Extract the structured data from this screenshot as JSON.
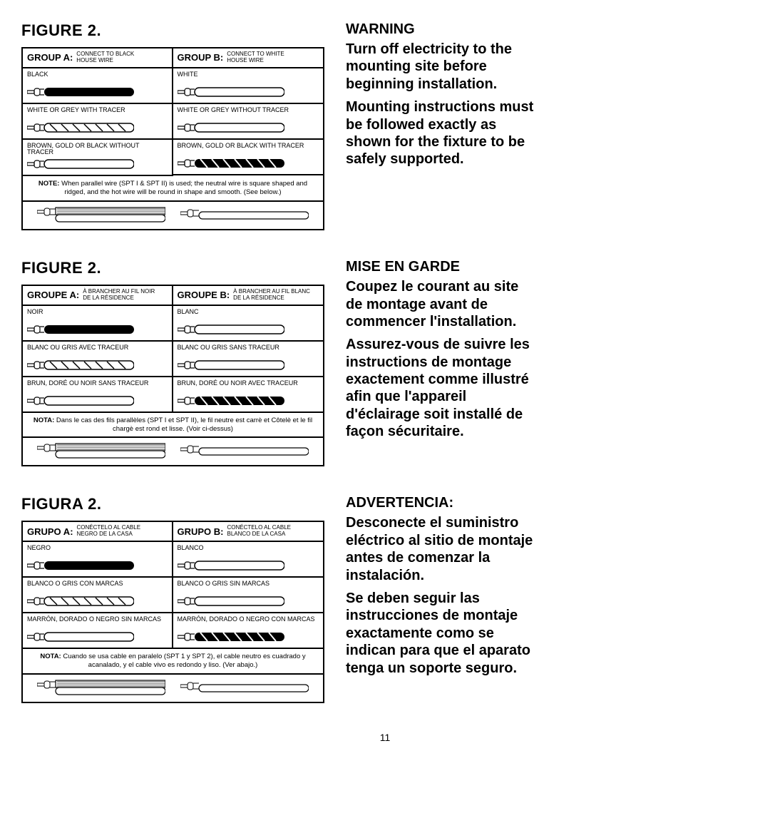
{
  "pageNumber": "11",
  "sections": [
    {
      "figTitle": "FIGURE 2.",
      "groupA": {
        "label": "GROUP A:",
        "sub1": "CONNECT TO BLACK",
        "sub2": "HOUSE WIRE"
      },
      "groupB": {
        "label": "GROUP B:",
        "sub1": "CONNECT TO WHITE",
        "sub2": "HOUSE WIRE"
      },
      "colA": [
        "BLACK",
        "WHITE OR GREY WITH TRACER",
        "BROWN, GOLD OR BLACK WITHOUT TRACER"
      ],
      "colB": [
        "WHITE",
        "WHITE OR GREY WITHOUT TRACER",
        "BROWN, GOLD OR BLACK WITH TRACER"
      ],
      "noteLabel": "NOTE:",
      "noteText": "When parallel wire (SPT I & SPT II) is used; the neutral wire is square shaped and ridged, and the hot wire will be round in shape and smooth. (See below.)",
      "warnTitle": "WARNING",
      "warnP1": "Turn off electricity to the mounting site before beginning installation.",
      "warnP2": "Mounting instructions must be followed exactly as shown for the fixture to be safely supported."
    },
    {
      "figTitle": "FIGURE 2.",
      "groupA": {
        "label": "GROUPE A:",
        "sub1": "À BRANCHER AU FIL NOIR",
        "sub2": "DE LA RÉSIDENCE"
      },
      "groupB": {
        "label": "GROUPE B:",
        "sub1": "À BRANCHER AU FIL BLANC",
        "sub2": "DE LA RÉSIDENCE"
      },
      "colA": [
        "NOIR",
        "BLANC OU GRIS AVEC TRACEUR",
        "BRUN, DORÉ OU NOIR SANS TRACEUR"
      ],
      "colB": [
        "BLANC",
        "BLANC OU GRIS SANS TRACEUR",
        "BRUN, DORÉ OU NOIR AVEC TRACEUR"
      ],
      "noteLabel": "NOTA:",
      "noteText": "Dans le cas des fils parallèles (SPT I et SPT II), le fil neutre est carrè et Côtelè et le fil chargè est rond et lisse. (Voir ci-dessus)",
      "warnTitle": "MISE EN GARDE",
      "warnP1": "Coupez le courant au site de montage avant de commencer l'installation.",
      "warnP2": "Assurez-vous de suivre les instructions de montage exactement comme illustré afin que l'appareil d'éclairage soit installé de façon sécuritaire."
    },
    {
      "figTitle": "FIGURA 2.",
      "groupA": {
        "label": "GRUPO A:",
        "sub1": "CONÉCTELO AL CABLE",
        "sub2": "NEGRO DE LA CASA"
      },
      "groupB": {
        "label": "GRUPO B:",
        "sub1": "CONÉCTELO AL CABLE",
        "sub2": "BLANCO DE LA CASA"
      },
      "colA": [
        "NEGRO",
        "BLANCO O GRIS CON MARCAS",
        "MARRÓN, DORADO O NEGRO SIN MARCAS"
      ],
      "colB": [
        "BLANCO",
        "BLANCO O GRIS SIN MARCAS",
        "MARRÓN, DORADO O NEGRO CON MARCAS"
      ],
      "noteLabel": "NOTA:",
      "noteText": "Cuando se usa cable en paralelo (SPT 1 y SPT 2), el cable neutro es cuadrado y acanalado, y el cable vivo es redondo y liso. (Ver abajo.)",
      "warnTitle": "ADVERTENCIA:",
      "warnP1": "Desconecte el suministro eléctrico al sitio de montaje antes de comenzar la instalación.",
      "warnP2": "Se deben seguir las instrucciones de montaje exactamente como se indican para que el aparato tenga un soporte seguro."
    }
  ],
  "wireStyles": {
    "black": "solid-black",
    "white": "outline",
    "tracer": "outline-dashes",
    "plain": "outline",
    "ribbed": "solid-ribbed"
  }
}
